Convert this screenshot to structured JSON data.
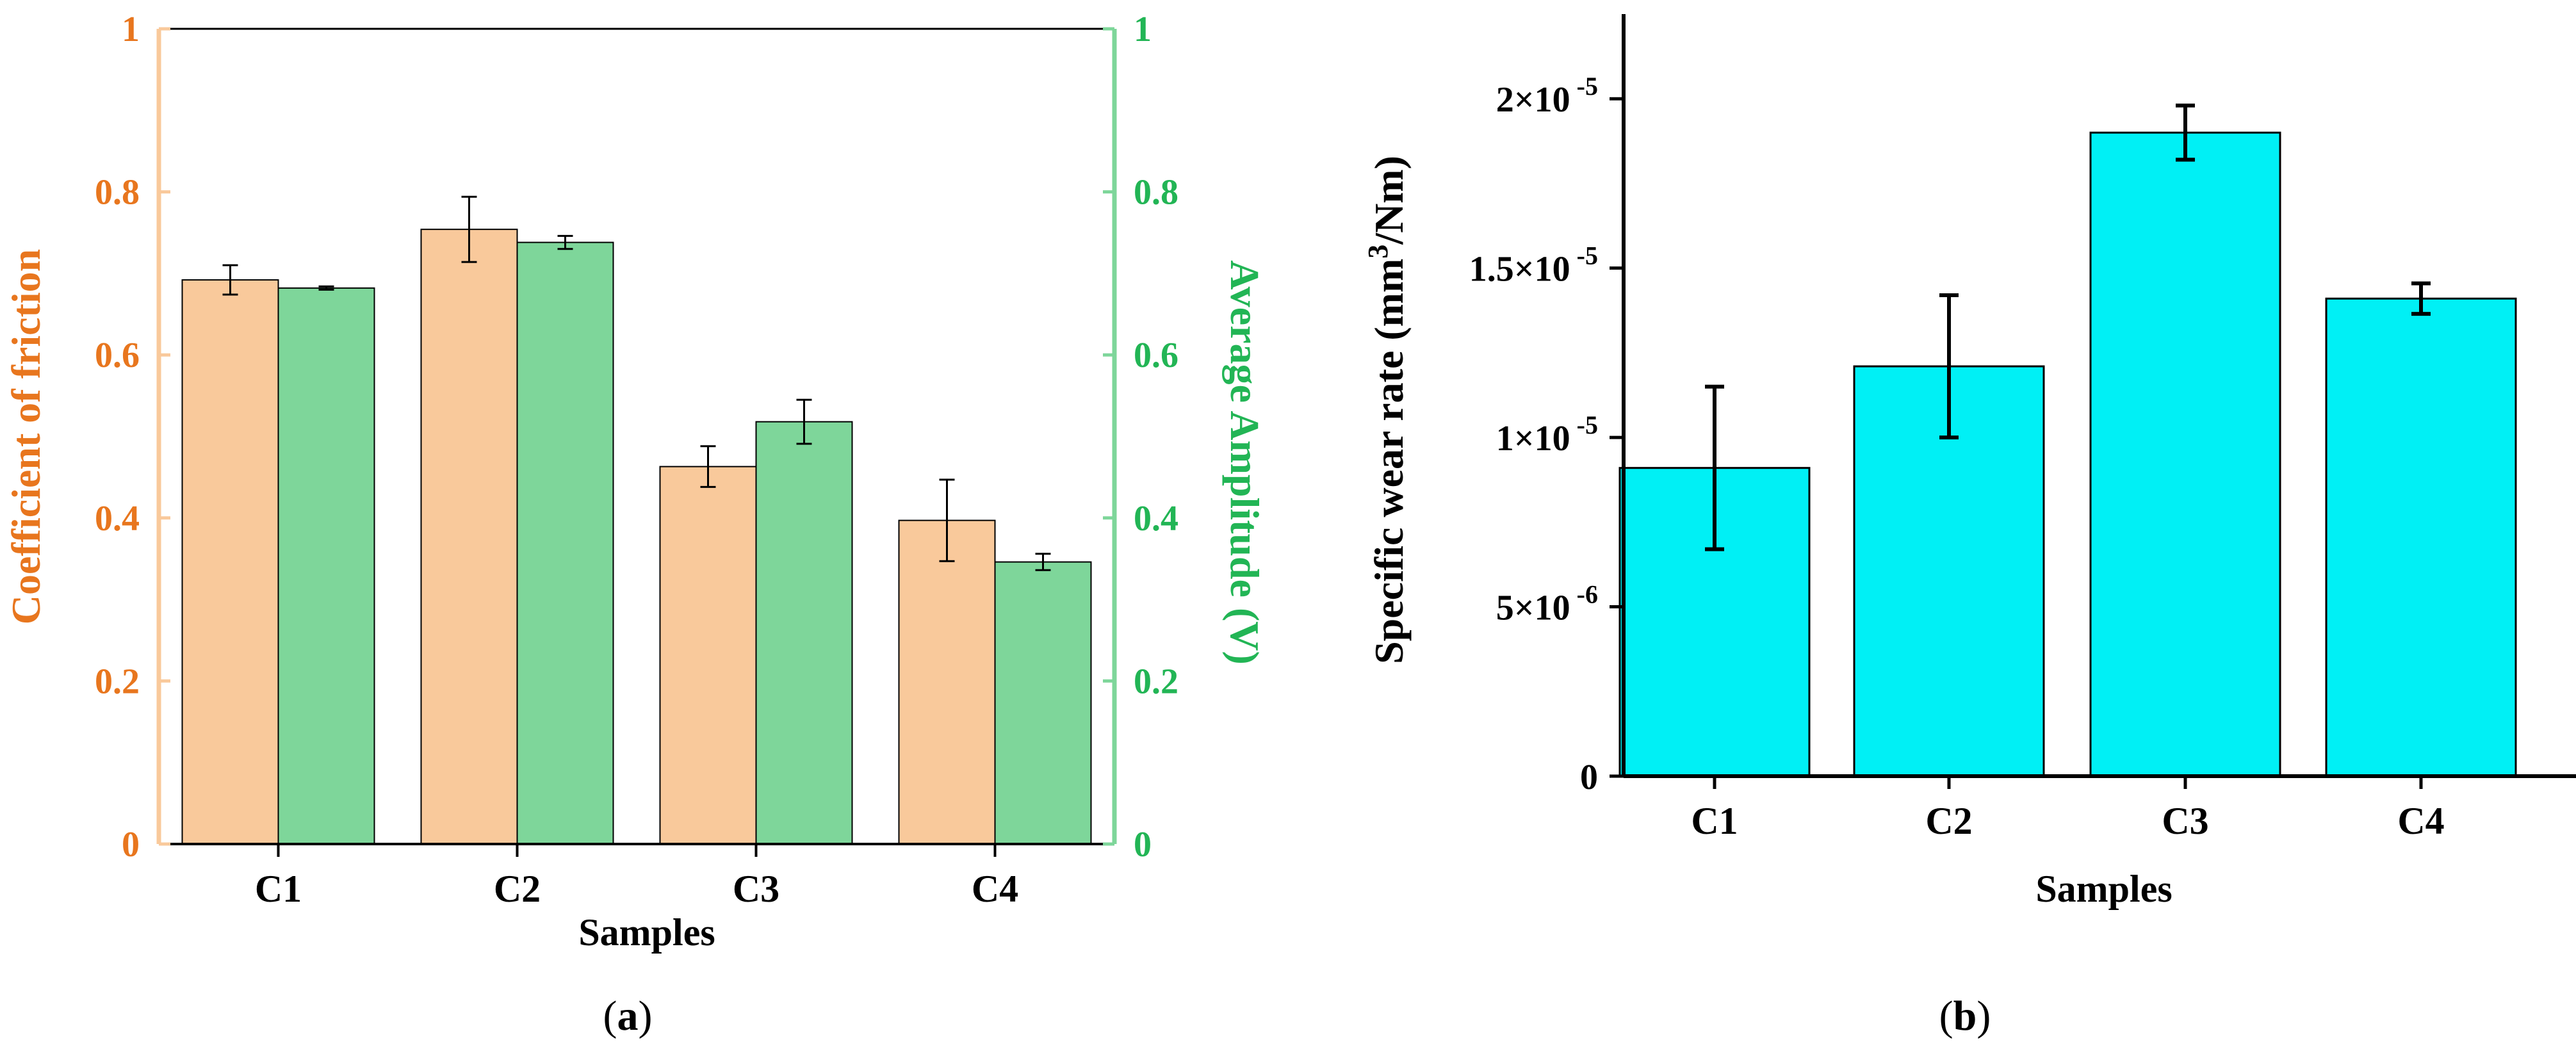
{
  "colors": {
    "friction_axis": "#e8761e",
    "friction_axis_line": "#f9c99b",
    "friction_bar": "#f9c99b",
    "amplitude_axis": "#22b555",
    "amplitude_axis_line": "#7ed69a",
    "amplitude_bar": "#7ed69a",
    "wear_bar": "#00f0f5",
    "ink": "#000000"
  },
  "chart_data": [
    {
      "panel": "a",
      "type": "bar",
      "panel_label_prefix": "(",
      "panel_label_letter": "a",
      "panel_label_suffix": ")",
      "xlabel": "Samples",
      "categories": [
        "C1",
        "C2",
        "C3",
        "C4"
      ],
      "left_axis": {
        "label": "Coefficient of friction",
        "ylim": [
          0,
          1
        ],
        "ticks": [
          "0",
          "0.2",
          "0.4",
          "0.6",
          "0.8",
          "1"
        ]
      },
      "right_axis": {
        "label": "Average Amplitude (V)",
        "ylim": [
          0,
          1
        ],
        "ticks": [
          "0",
          "0.2",
          "0.4",
          "0.6",
          "0.8",
          "1"
        ]
      },
      "series": [
        {
          "name": "Coefficient of friction",
          "axis": "left",
          "values": [
            0.692,
            0.754,
            0.463,
            0.397
          ],
          "errors": [
            0.018,
            0.04,
            0.025,
            0.05
          ]
        },
        {
          "name": "Average Amplitude (V)",
          "axis": "right",
          "values": [
            0.682,
            0.738,
            0.518,
            0.346
          ],
          "errors": [
            0.002,
            0.008,
            0.027,
            0.01
          ]
        }
      ]
    },
    {
      "panel": "b",
      "type": "bar",
      "panel_label_prefix": "(",
      "panel_label_letter": "b",
      "panel_label_suffix": ")",
      "xlabel": "Samples",
      "ylabel_main": "Specific wear rate (mm",
      "ylabel_sup": "3",
      "ylabel_tail": "/Nm)",
      "categories": [
        "C1",
        "C2",
        "C3",
        "C4"
      ],
      "ylim": [
        0,
        2.25e-05
      ],
      "ticks": [
        {
          "value": 0,
          "mant": "0",
          "exp": ""
        },
        {
          "value": 5e-06,
          "mant": "5×10",
          "exp": "-6"
        },
        {
          "value": 1e-05,
          "mant": "1×10",
          "exp": "-5"
        },
        {
          "value": 1.5e-05,
          "mant": "1.5×10",
          "exp": "-5"
        },
        {
          "value": 2e-05,
          "mant": "2×10",
          "exp": "-5"
        }
      ],
      "series": [
        {
          "name": "Specific wear rate",
          "values": [
            9.1e-06,
            1.21e-05,
            1.9e-05,
            1.41e-05
          ],
          "errors": [
            2.4e-06,
            2.1e-06,
            8e-07,
            4.5e-07
          ]
        }
      ]
    }
  ]
}
